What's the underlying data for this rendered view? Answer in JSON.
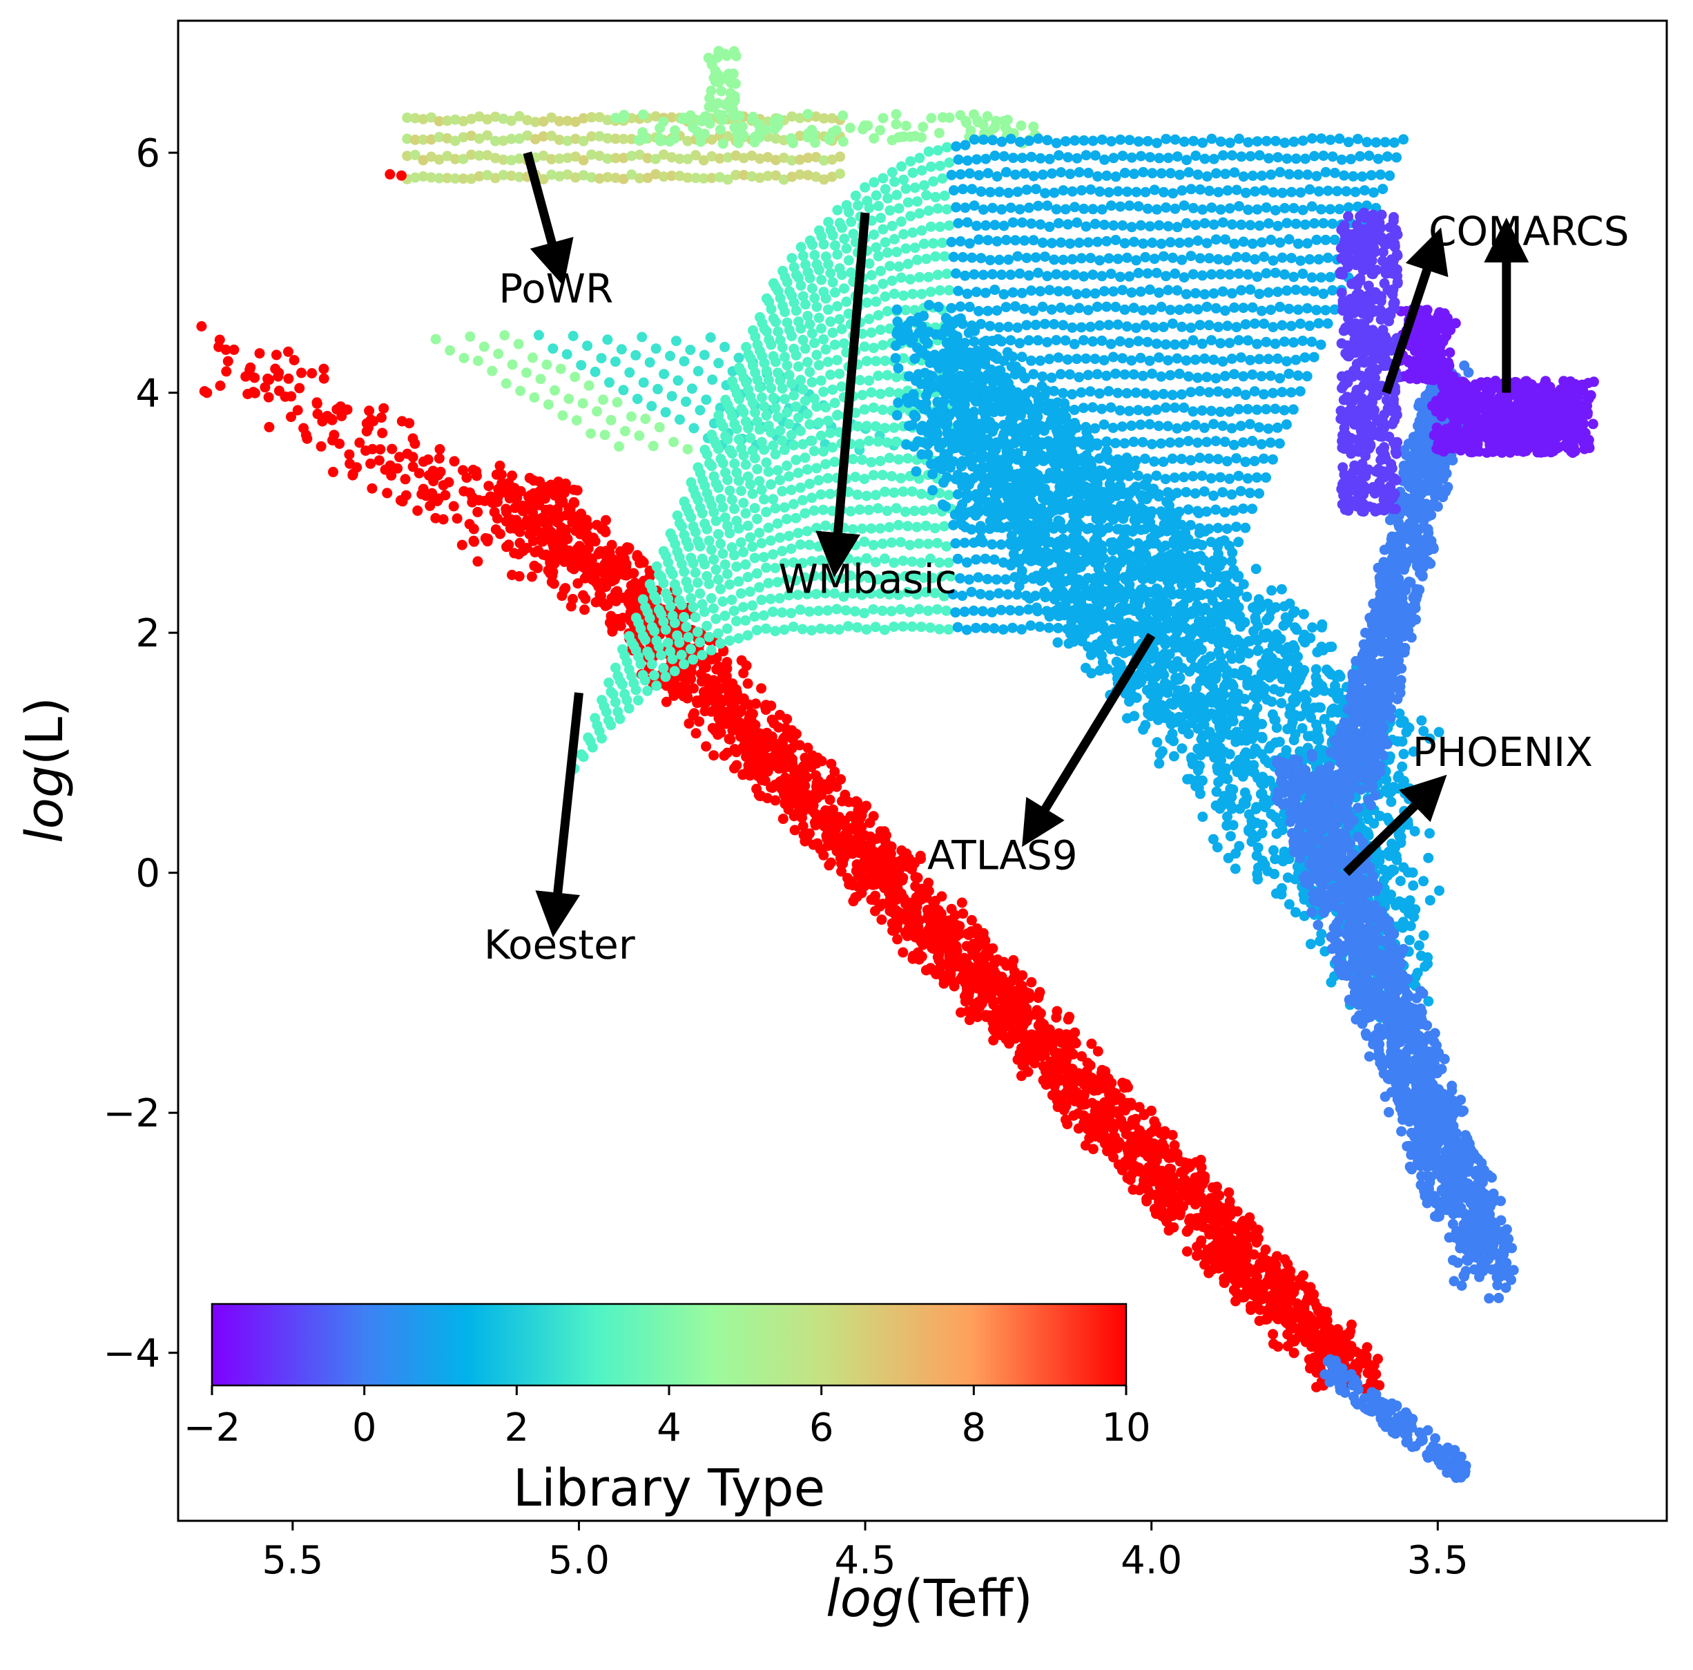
{
  "chart_data": {
    "type": "scatter",
    "title": "",
    "xlabel": {
      "italic": "log",
      "rest": "(Teff)"
    },
    "ylabel": {
      "italic": "log",
      "rest": "(L)"
    },
    "x_axis_inverted": true,
    "xlim": [
      5.7,
      3.1
    ],
    "ylim": [
      -5.4,
      7.1
    ],
    "xticks": [
      5.5,
      5.0,
      4.5,
      4.0,
      3.5
    ],
    "xtick_labels": [
      "5.5",
      "5.0",
      "4.5",
      "4.0",
      "3.5"
    ],
    "yticks": [
      6,
      4,
      2,
      0,
      -2,
      -4
    ],
    "ytick_labels": [
      "6",
      "4",
      "2",
      "0",
      "−2",
      "−4"
    ],
    "grid": false,
    "colorbar": {
      "label": "Library Type",
      "range": [
        -2,
        10
      ],
      "ticks": [
        -2,
        0,
        2,
        4,
        6,
        8,
        10
      ],
      "tick_labels": [
        "−2",
        "0",
        "2",
        "4",
        "6",
        "8",
        "10"
      ],
      "placement": "bottom-left inset",
      "colormap": "rainbow"
    },
    "series": [
      {
        "name": "Koester",
        "library_type": 10,
        "color": "#ff0000"
      },
      {
        "name": "PoWR",
        "library_type": 6,
        "color": "#c7e082"
      },
      {
        "name": "WMbasic",
        "library_type": 3,
        "color": "#55f0c3"
      },
      {
        "name": "ATLAS9",
        "library_type": 1,
        "color": "#01b3e9"
      },
      {
        "name": "PHOENIX",
        "library_type": 0,
        "color": "#337ef3"
      },
      {
        "name": "COMARCS",
        "library_type": -1.5,
        "color": "#6440fb"
      }
    ],
    "annotations": [
      {
        "text": "PoWR",
        "arrow_from": [
          5.09,
          6.0
        ],
        "arrow_to": [
          5.04,
          5.12
        ]
      },
      {
        "text": "WMbasic",
        "arrow_from": [
          4.5,
          5.5
        ],
        "arrow_to": [
          4.55,
          2.7
        ]
      },
      {
        "text": "ATLAS9",
        "arrow_from": [
          4.0,
          1.98
        ],
        "arrow_to": [
          4.2,
          0.42
        ]
      },
      {
        "text": "Koester",
        "arrow_from": [
          5.0,
          1.5
        ],
        "arrow_to": [
          5.04,
          -0.3
        ]
      },
      {
        "text": "PHOENIX",
        "arrow_from": [
          3.66,
          0.0
        ],
        "arrow_to": [
          3.52,
          0.65
        ]
      },
      {
        "text": "COMARCS",
        "arrow_from": [
          3.59,
          4.0
        ],
        "arrow_to": [
          3.51,
          5.15
        ]
      },
      {
        "text": "COMARCS",
        "arrow_from": [
          3.38,
          4.0
        ],
        "arrow_to": [
          3.38,
          5.22
        ]
      }
    ]
  }
}
